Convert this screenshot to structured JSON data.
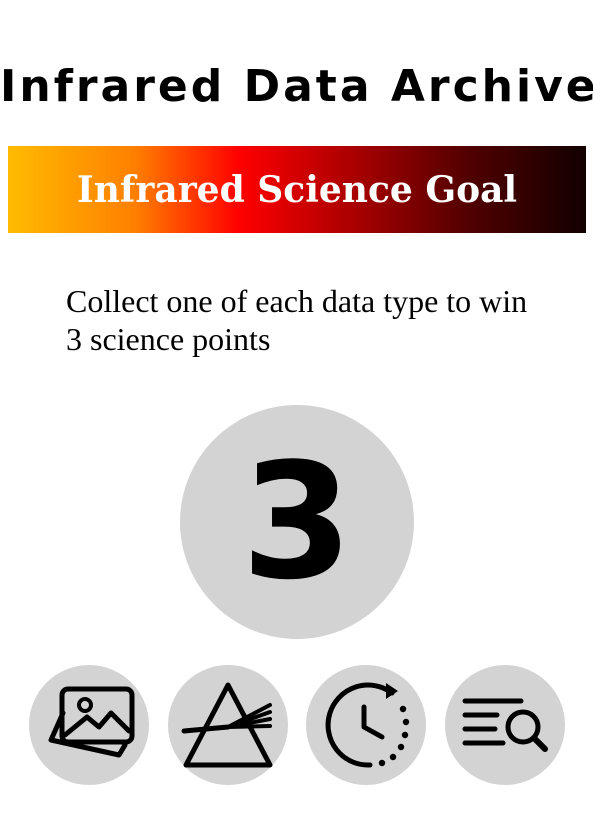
{
  "card": {
    "title": "Infrared Data Archive",
    "goal_banner": {
      "label": "Infrared Science Goal",
      "gradient_colors": [
        "#ffbb00",
        "#ff7f00",
        "#ff0000",
        "#a00000",
        "#500000",
        "#120000"
      ]
    },
    "description": "Collect one of each data type to win 3 science points",
    "points": "3",
    "data_types": [
      {
        "icon": "images-icon"
      },
      {
        "icon": "prism-icon"
      },
      {
        "icon": "clock-history-icon"
      },
      {
        "icon": "search-list-icon"
      }
    ],
    "circle_color": "#d3d3d3"
  }
}
